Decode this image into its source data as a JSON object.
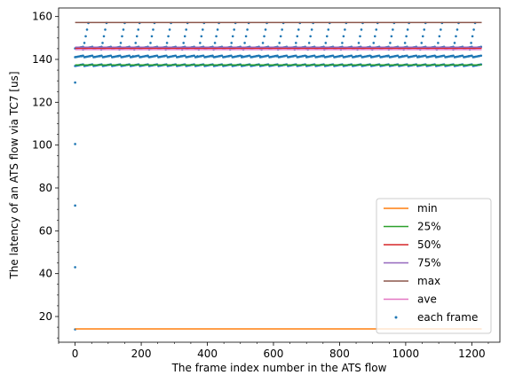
{
  "chart_data": {
    "type": "line",
    "title": "",
    "xlabel": "The frame index number in the ATS flow",
    "ylabel": "The latency of an ATS flow via TC7 [us]",
    "xlim": [
      -50,
      1285
    ],
    "ylim": [
      8,
      164
    ],
    "x_ticks": [
      0,
      200,
      400,
      600,
      800,
      1000,
      1200
    ],
    "y_ticks": [
      20,
      40,
      60,
      80,
      100,
      120,
      140,
      160
    ],
    "grid": false,
    "legend_position": "lower right",
    "series": [
      {
        "name": "min",
        "color": "#ff7f0e",
        "style": "line",
        "x": [
          0,
          1230
        ],
        "y": [
          14.2,
          14.2
        ]
      },
      {
        "name": "25%",
        "color": "#2ca02c",
        "style": "line",
        "x": [
          0,
          1230
        ],
        "y": [
          137.4,
          137.4
        ]
      },
      {
        "name": "50%",
        "color": "#d62728",
        "style": "line",
        "x": [
          0,
          1230
        ],
        "y": [
          145.3,
          145.3
        ]
      },
      {
        "name": "75%",
        "color": "#9467bd",
        "style": "line",
        "x": [
          0,
          1230
        ],
        "y": [
          145.7,
          145.7
        ]
      },
      {
        "name": "max",
        "color": "#8c564b",
        "style": "line",
        "x": [
          0,
          1230
        ],
        "y": [
          157.2,
          157.2
        ]
      },
      {
        "name": "ave",
        "color": "#e377c2",
        "style": "line",
        "x": [
          0,
          1230
        ],
        "y": [
          144.6,
          144.6
        ]
      },
      {
        "name": "each frame",
        "color": "#1f77b4",
        "style": "points",
        "start_points": [
          [
            0,
            14.0
          ],
          [
            0,
            43.0
          ],
          [
            0,
            71.8
          ],
          [
            0,
            100.5
          ],
          [
            0,
            129.2
          ]
        ],
        "bands": [
          137.3,
          141.4,
          145.5
        ],
        "band_x_range": [
          0,
          1230
        ],
        "ramp_peaks_x": [
          40,
          95,
          150,
          195,
          240,
          290,
          340,
          390,
          435,
          485,
          525,
          580,
          630,
          680,
          720,
          770,
          820,
          870,
          915,
          965,
          1010,
          1060,
          1110,
          1160,
          1210
        ],
        "ramp_y_range": [
          141.5,
          157.0
        ]
      }
    ]
  }
}
